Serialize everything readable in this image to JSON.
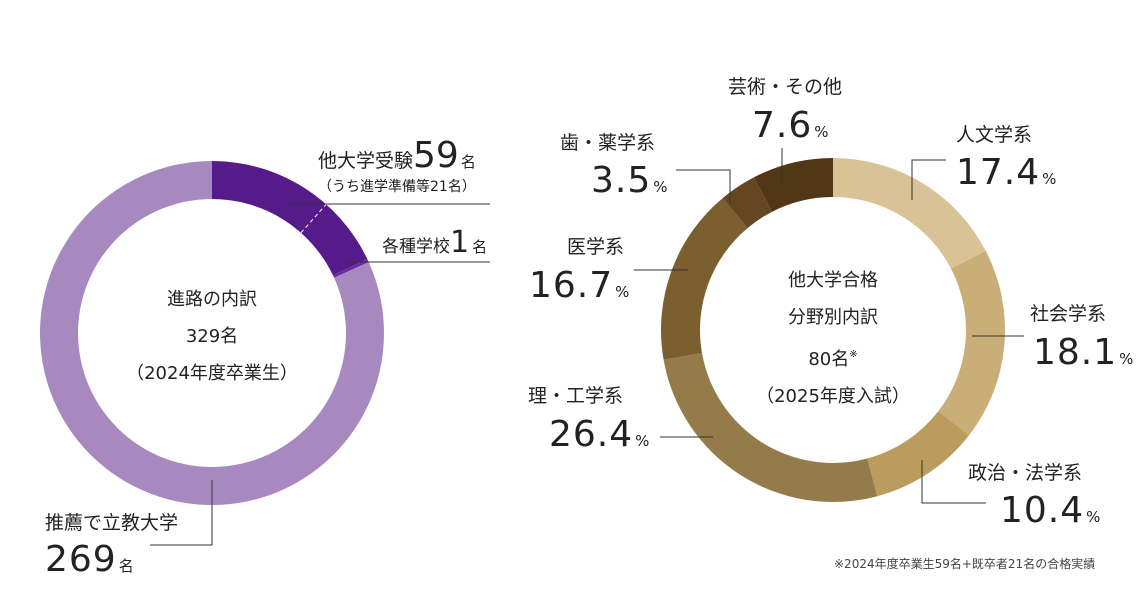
{
  "chart_data": [
    {
      "type": "pie",
      "title": "進路の内訳",
      "total": "329名",
      "subtitle": "（2024年度卒業生）",
      "colors": {
        "other_university": "#561b8a",
        "vocational": "#6b2aa0",
        "recommendation": "#a788bf"
      },
      "slices": [
        {
          "key": "other_university",
          "label": "他大学受験",
          "value": 59,
          "value_text": "59",
          "unit": "名",
          "note": "（うち進学準備等21名）"
        },
        {
          "key": "vocational",
          "label": "各種学校",
          "value": 1,
          "value_text": "1",
          "unit": "名"
        },
        {
          "key": "recommendation",
          "label": "推薦で立教大学",
          "value": 269,
          "value_text": "269",
          "unit": "名"
        }
      ]
    },
    {
      "type": "pie",
      "title": "他大学合格",
      "title2": "分野別内訳",
      "total": "80名",
      "total_mark": "※",
      "subtitle": "（2025年度入試）",
      "slices": [
        {
          "label": "人文学系",
          "value": 17.4,
          "value_text": "17.4",
          "unit": "%",
          "color": "#d9c396"
        },
        {
          "label": "社会学系",
          "value": 18.1,
          "value_text": "18.1",
          "unit": "%",
          "color": "#c9ae78"
        },
        {
          "label": "政治・法学系",
          "value": 10.4,
          "value_text": "10.4",
          "unit": "%",
          "color": "#bb9c5e"
        },
        {
          "label": "理・工学系",
          "value": 26.4,
          "value_text": "26.4",
          "unit": "%",
          "color": "#967b4a"
        },
        {
          "label": "医学系",
          "value": 16.7,
          "value_text": "16.7",
          "unit": "%",
          "color": "#7b5f2f"
        },
        {
          "label": "歯・薬学系",
          "value": 3.5,
          "value_text": "3.5",
          "unit": "%",
          "color": "#644620"
        },
        {
          "label": "芸術・その他",
          "value": 7.6,
          "value_text": "7.6",
          "unit": "%",
          "color": "#513716"
        }
      ]
    }
  ],
  "footnote": "※2024年度卒業生59名+既卒者21名の合格実績"
}
